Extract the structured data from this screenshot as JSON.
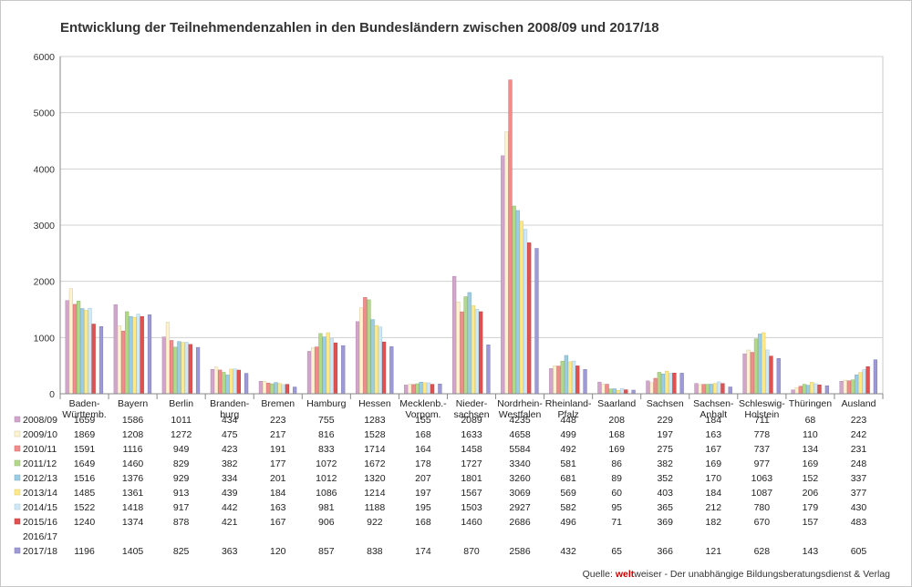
{
  "chart_data": {
    "type": "bar",
    "title": "Entwicklung der Teilnehmendenzahlen in den Bundesländern zwischen 2008/09 und 2017/18",
    "xlabel": "",
    "ylabel": "",
    "ylim": [
      0,
      6000
    ],
    "yticks": [
      0,
      1000,
      2000,
      3000,
      4000,
      5000,
      6000
    ],
    "grid": true,
    "legend": "data-table-bottom",
    "categories": [
      [
        "Baden-",
        "Württemb."
      ],
      [
        "Bayern"
      ],
      [
        "Berlin"
      ],
      [
        "Branden-",
        "burg"
      ],
      [
        "Bremen"
      ],
      [
        "Hamburg"
      ],
      [
        "Hessen"
      ],
      [
        "Mecklenb.-",
        "Vorpom."
      ],
      [
        "Nieder-",
        "sachsen"
      ],
      [
        "Nordrhein-",
        "Westfalen"
      ],
      [
        "Rheinland-",
        "Pfalz"
      ],
      [
        "Saarland"
      ],
      [
        "Sachsen"
      ],
      [
        "Sachsen-",
        "Anhalt"
      ],
      [
        "Schleswig-",
        "Holstein"
      ],
      [
        "Thüringen"
      ],
      [
        "Ausland"
      ]
    ],
    "series": [
      {
        "name": "2008/09",
        "color": "#d2a6cc",
        "border": "#b48ab0",
        "values": [
          1659,
          1586,
          1011,
          434,
          223,
          755,
          1283,
          155,
          2089,
          4235,
          448,
          208,
          229,
          184,
          711,
          68,
          223
        ]
      },
      {
        "name": "2009/10",
        "color": "#fdf2d2",
        "border": "#d8c89a",
        "values": [
          1869,
          1208,
          1272,
          475,
          217,
          816,
          1528,
          168,
          1633,
          4658,
          499,
          168,
          197,
          163,
          778,
          110,
          242
        ]
      },
      {
        "name": "2010/11",
        "color": "#f08c8c",
        "border": "#d06a6a",
        "values": [
          1591,
          1116,
          949,
          423,
          191,
          833,
          1714,
          164,
          1458,
          5584,
          492,
          169,
          275,
          167,
          737,
          134,
          231
        ]
      },
      {
        "name": "2011/12",
        "color": "#b2d88a",
        "border": "#90b868",
        "values": [
          1649,
          1460,
          829,
          382,
          177,
          1072,
          1672,
          178,
          1727,
          3340,
          581,
          86,
          382,
          169,
          977,
          169,
          248
        ]
      },
      {
        "name": "2012/13",
        "color": "#9ccde4",
        "border": "#78aac4",
        "values": [
          1516,
          1376,
          929,
          334,
          201,
          1012,
          1320,
          207,
          1801,
          3260,
          681,
          89,
          352,
          170,
          1063,
          152,
          337
        ]
      },
      {
        "name": "2013/14",
        "color": "#fde98a",
        "border": "#dcc864",
        "values": [
          1485,
          1361,
          913,
          439,
          184,
          1086,
          1214,
          197,
          1567,
          3069,
          569,
          60,
          403,
          184,
          1087,
          206,
          377
        ]
      },
      {
        "name": "2014/15",
        "color": "#cfe8f6",
        "border": "#a8c8dc",
        "values": [
          1522,
          1418,
          917,
          442,
          163,
          981,
          1188,
          195,
          1503,
          2927,
          582,
          95,
          365,
          212,
          780,
          179,
          430
        ]
      },
      {
        "name": "2015/16",
        "color": "#e05252",
        "border": "#c03a3a",
        "values": [
          1240,
          1374,
          878,
          421,
          167,
          906,
          922,
          168,
          1460,
          2686,
          496,
          71,
          369,
          182,
          670,
          157,
          483
        ]
      },
      {
        "name": "2016/17",
        "color": "#ffffff",
        "border": "#ffffff",
        "values": [
          null,
          null,
          null,
          null,
          null,
          null,
          null,
          null,
          null,
          null,
          null,
          null,
          null,
          null,
          null,
          null,
          null
        ]
      },
      {
        "name": "2017/18",
        "color": "#9e9ad6",
        "border": "#7c78b8",
        "values": [
          1196,
          1405,
          825,
          363,
          120,
          857,
          838,
          174,
          870,
          2586,
          432,
          65,
          366,
          121,
          628,
          143,
          605
        ]
      }
    ]
  },
  "source": {
    "prefix": "Quelle: ",
    "brand": "welt",
    "suffix": "weiser - Der unabhängige Bildungsberatungsdienst & Verlag"
  }
}
